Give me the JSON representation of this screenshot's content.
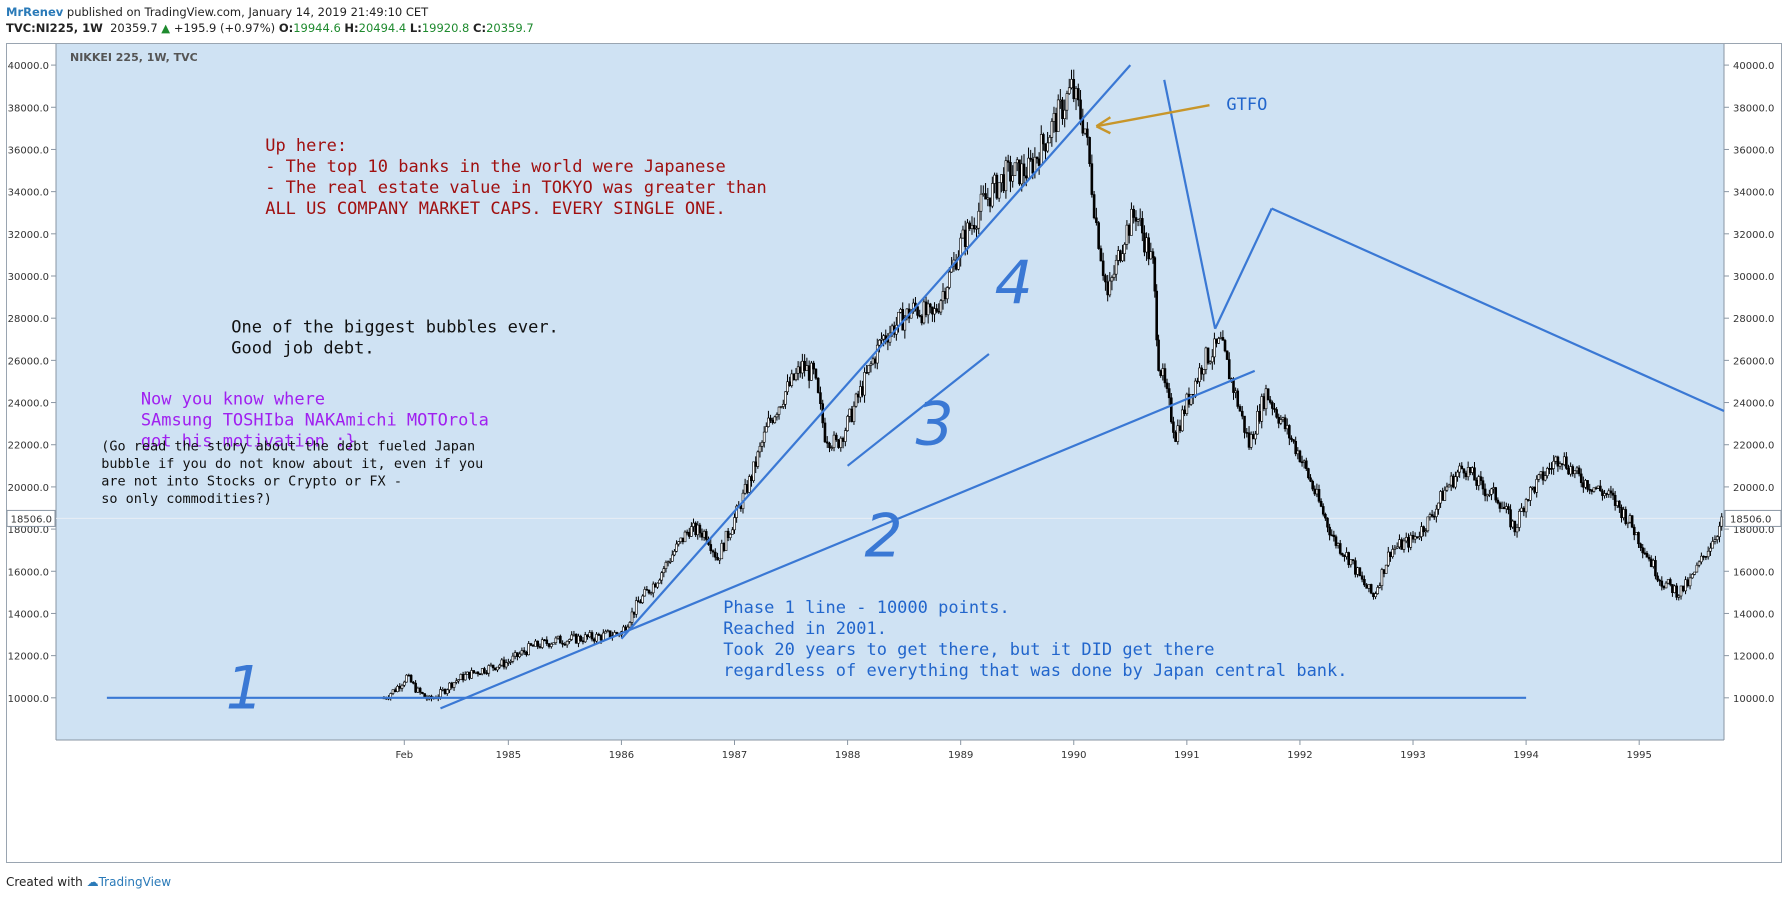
{
  "header": {
    "author": "MrRenev",
    "published_text": " published on TradingView.com, January 14, 2019 21:49:10 CET",
    "symbol": "TVC:NI225, 1W",
    "last": "20359.7",
    "change": "+195.9 (+0.97%)",
    "open_label": "O:",
    "open": "19944.6",
    "high_label": "H:",
    "high": "20494.4",
    "low_label": "L:",
    "low": "19920.8",
    "close_label": "C:",
    "close": "20359.7"
  },
  "chart_title": "NIKKEI 225, 1W, TVC",
  "footer": {
    "created_with": "Created with",
    "brand": "TradingView"
  },
  "colors": {
    "plot_bg": "#cfe2f3",
    "candles": "#000000",
    "trend_line": "#3a78d4",
    "arrow": "#c8962a",
    "annotation_red": "#a01010",
    "annotation_purple": "#a020f0",
    "annotation_blue": "#2266cc",
    "annotation_black": "#111111"
  },
  "annotations": {
    "gtfo": "GTFO",
    "red_block": [
      "Up here:",
      "- The top 10 banks in the world were Japanese",
      "- The real estate value in TOKYO was greater than",
      "ALL US COMPANY MARKET CAPS. EVERY SINGLE ONE."
    ],
    "black_block": [
      "One of the biggest bubbles ever.",
      "Good job debt."
    ],
    "purple_block": [
      "Now you know where",
      "SAmsung TOSHIba NAKAmichi MOTOrola",
      "got his motivation :}"
    ],
    "small_block": [
      "(Go read the story about the debt fueled Japan",
      "bubble if you do not know about it, even if you",
      "are not into Stocks or Crypto or FX -",
      "so only commodities?)"
    ],
    "blue_block": [
      "Phase 1 line - 10000 points.",
      "Reached in 2001.",
      "Took 20 years to get there, but it DID get there",
      "regardless of everything that was done by Japan central bank."
    ],
    "phase_numbers": [
      "1",
      "2",
      "3",
      "4"
    ]
  },
  "chart_data": {
    "type": "candlestick",
    "title": "NIKKEI 225, 1W, TVC",
    "ylim": [
      8000,
      41000
    ],
    "y_ticks": [
      10000,
      12000,
      14000,
      16000,
      18000,
      20000,
      22000,
      24000,
      26000,
      28000,
      30000,
      32000,
      34000,
      36000,
      38000,
      40000
    ],
    "y_tick_labels": [
      "10000.0",
      "12000.0",
      "14000.0",
      "16000.0",
      "18000.0",
      "20000.0",
      "22000.0",
      "24000.0",
      "26000.0",
      "28000.0",
      "30000.0",
      "32000.0",
      "34000.0",
      "36000.0",
      "38000.0",
      "40000.0"
    ],
    "x_tick_labels": [
      "Feb",
      "1985",
      "1986",
      "1987",
      "1988",
      "1989",
      "1990",
      "1991",
      "1992",
      "1993",
      "1994",
      "1995"
    ],
    "x_tick_years": [
      1984.08,
      1985,
      1986,
      1987,
      1988,
      1989,
      1990,
      1991,
      1992,
      1993,
      1994,
      1995
    ],
    "x_range": [
      1981.0,
      1995.75
    ],
    "price_marker": "18506.0",
    "price_marker_value": 18506,
    "series": [
      {
        "x": [
          1983.9,
          1984.0,
          1984.1,
          1984.2,
          1984.3,
          1984.4,
          1984.5,
          1984.6,
          1984.75,
          1985.0,
          1985.2,
          1985.4,
          1985.6,
          1985.8,
          1986.0,
          1986.15,
          1986.3,
          1986.45,
          1986.6,
          1986.75,
          1986.85,
          1987.0,
          1987.15,
          1987.3,
          1987.45,
          1987.6,
          1987.7,
          1987.8,
          1987.9,
          1988.0,
          1988.15,
          1988.3,
          1988.45,
          1988.6,
          1988.75,
          1988.9,
          1989.0,
          1989.2,
          1989.4,
          1989.6,
          1989.75,
          1989.9,
          1989.98,
          1990.1,
          1990.2,
          1990.3,
          1990.45,
          1990.55,
          1990.7,
          1990.75,
          1990.9,
          1991.0,
          1991.15,
          1991.3,
          1991.45,
          1991.55,
          1991.7,
          1991.85,
          1992.0,
          1992.15,
          1992.3,
          1992.45,
          1992.55,
          1992.65,
          1992.8,
          1993.0,
          1993.15,
          1993.3,
          1993.45,
          1993.6,
          1993.75,
          1993.9,
          1994.0,
          1994.15,
          1994.3,
          1994.45,
          1994.6,
          1994.75,
          1994.9,
          1995.05,
          1995.2,
          1995.35,
          1995.45,
          1995.55,
          1995.65,
          1995.75
        ],
        "values": [
          10000,
          10400,
          11000,
          10300,
          9900,
          10200,
          10700,
          11000,
          11300,
          11700,
          12400,
          12700,
          12800,
          12900,
          13100,
          14500,
          15500,
          16800,
          18000,
          17800,
          16600,
          18500,
          20500,
          23000,
          24500,
          25700,
          25300,
          22500,
          22000,
          23000,
          25000,
          27000,
          27800,
          28500,
          28000,
          30000,
          31500,
          33500,
          34800,
          35000,
          36500,
          38000,
          38900,
          37000,
          32500,
          29000,
          32000,
          33000,
          30500,
          26000,
          22500,
          24000,
          26000,
          26800,
          24000,
          22000,
          24500,
          23000,
          21500,
          19500,
          17500,
          16500,
          15500,
          14800,
          17000,
          17500,
          18500,
          20000,
          21000,
          20000,
          19500,
          18000,
          19500,
          20500,
          21500,
          20500,
          20000,
          19500,
          18500,
          17000,
          15500,
          15000,
          15500,
          16500,
          17500,
          18500
        ]
      }
    ]
  }
}
